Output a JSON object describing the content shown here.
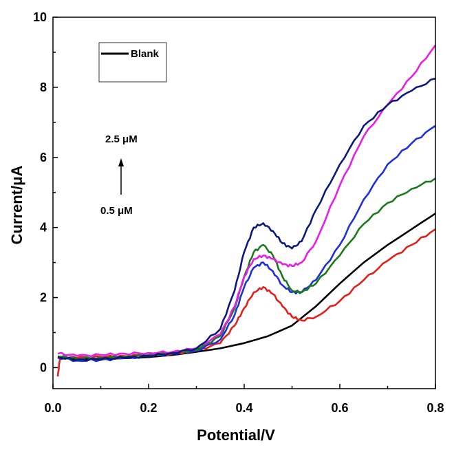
{
  "chart_data": {
    "type": "line",
    "xlabel": "Potential/V",
    "ylabel": "Current/μA",
    "xlim": [
      0.0,
      0.8
    ],
    "ylim": [
      -0.6,
      10
    ],
    "xticks": [
      "0.0",
      "0.2",
      "0.4",
      "0.6",
      "0.8"
    ],
    "yticks": [
      "0",
      "2",
      "4",
      "6",
      "8",
      "10"
    ],
    "grid": false,
    "legend": {
      "placement": "top-left",
      "entries": [
        "Blank"
      ]
    },
    "annotations": {
      "top": "2.5 μM",
      "bottom": "0.5 μM"
    },
    "series": [
      {
        "name": "Blank",
        "color": "#000000",
        "x": [
          0.01,
          0.05,
          0.1,
          0.15,
          0.2,
          0.25,
          0.3,
          0.35,
          0.4,
          0.45,
          0.5,
          0.55,
          0.6,
          0.65,
          0.7,
          0.75,
          0.8
        ],
        "y": [
          0.28,
          0.24,
          0.24,
          0.27,
          0.3,
          0.36,
          0.45,
          0.55,
          0.7,
          0.9,
          1.2,
          1.75,
          2.4,
          3.0,
          3.5,
          3.95,
          4.4
        ]
      },
      {
        "color": "#e0201c",
        "x": [
          0.01,
          0.015,
          0.05,
          0.1,
          0.15,
          0.2,
          0.25,
          0.3,
          0.35,
          0.38,
          0.4,
          0.42,
          0.44,
          0.46,
          0.48,
          0.5,
          0.52,
          0.55,
          0.6,
          0.65,
          0.7,
          0.75,
          0.8
        ],
        "y": [
          -0.25,
          0.3,
          0.28,
          0.3,
          0.33,
          0.36,
          0.4,
          0.48,
          0.7,
          1.2,
          1.7,
          2.15,
          2.3,
          2.1,
          1.75,
          1.45,
          1.35,
          1.45,
          1.9,
          2.5,
          3.05,
          3.5,
          3.95
        ]
      },
      {
        "color": "#1f2fd6",
        "x": [
          0.01,
          0.05,
          0.1,
          0.15,
          0.2,
          0.25,
          0.3,
          0.35,
          0.38,
          0.4,
          0.42,
          0.44,
          0.46,
          0.48,
          0.5,
          0.52,
          0.55,
          0.6,
          0.65,
          0.7,
          0.75,
          0.8
        ],
        "y": [
          0.3,
          0.2,
          0.22,
          0.27,
          0.32,
          0.4,
          0.48,
          0.8,
          1.5,
          2.3,
          2.85,
          3.0,
          2.75,
          2.35,
          2.15,
          2.15,
          2.5,
          3.5,
          4.8,
          5.8,
          6.4,
          6.9
        ]
      },
      {
        "color": "#1a7a1a",
        "x": [
          0.01,
          0.05,
          0.1,
          0.15,
          0.2,
          0.25,
          0.3,
          0.35,
          0.38,
          0.4,
          0.42,
          0.44,
          0.46,
          0.48,
          0.5,
          0.52,
          0.55,
          0.6,
          0.65,
          0.7,
          0.75,
          0.8
        ],
        "y": [
          0.32,
          0.26,
          0.28,
          0.32,
          0.36,
          0.42,
          0.5,
          0.9,
          1.7,
          2.6,
          3.3,
          3.5,
          3.2,
          2.6,
          2.2,
          2.15,
          2.4,
          3.2,
          4.1,
          4.7,
          5.1,
          5.4
        ]
      },
      {
        "color": "#e61ee6",
        "x": [
          0.01,
          0.05,
          0.1,
          0.15,
          0.2,
          0.25,
          0.3,
          0.35,
          0.38,
          0.4,
          0.42,
          0.44,
          0.46,
          0.48,
          0.5,
          0.52,
          0.55,
          0.6,
          0.65,
          0.7,
          0.75,
          0.8
        ],
        "y": [
          0.4,
          0.34,
          0.36,
          0.4,
          0.42,
          0.45,
          0.55,
          0.95,
          1.75,
          2.6,
          3.1,
          3.2,
          3.1,
          2.95,
          2.9,
          3.0,
          3.6,
          5.2,
          6.6,
          7.5,
          8.3,
          9.2
        ]
      },
      {
        "color": "#0b1a7a",
        "x": [
          0.01,
          0.05,
          0.1,
          0.15,
          0.2,
          0.25,
          0.3,
          0.35,
          0.38,
          0.4,
          0.42,
          0.44,
          0.46,
          0.48,
          0.5,
          0.52,
          0.55,
          0.6,
          0.65,
          0.7,
          0.75,
          0.8
        ],
        "y": [
          0.3,
          0.22,
          0.24,
          0.28,
          0.33,
          0.42,
          0.55,
          1.1,
          2.2,
          3.3,
          4.0,
          4.12,
          3.9,
          3.55,
          3.4,
          3.6,
          4.5,
          5.8,
          6.9,
          7.5,
          7.9,
          8.25
        ]
      }
    ]
  }
}
